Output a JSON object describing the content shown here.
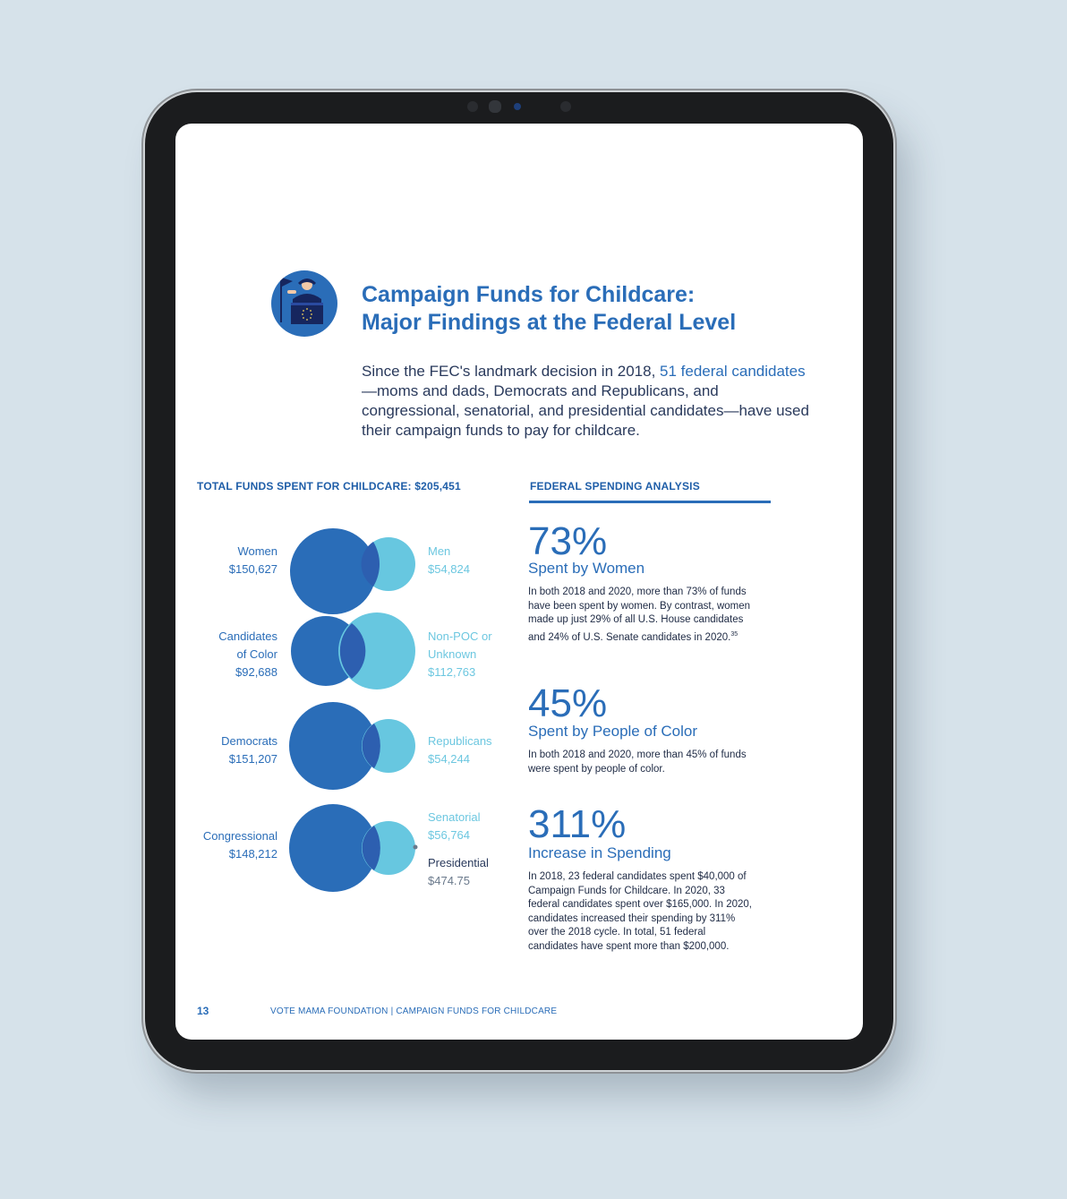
{
  "header": {
    "title_line1": "Campaign Funds for Childcare:",
    "title_line2": "Major Findings at the Federal Level",
    "intro_before": "Since the FEC's landmark decision in 2018, ",
    "intro_highlight": "51 federal candidates",
    "intro_after": "—moms and dads, Democrats and Republicans, and congressional, senatorial, and presidential candidates—have used their campaign funds to pay for childcare."
  },
  "left_section": {
    "heading": "TOTAL FUNDS SPENT FOR CHILDCARE: $205,451",
    "pairs": [
      {
        "left_lines": [
          "Women",
          "$150,627"
        ],
        "right_lines": [
          "Men",
          "$54,824"
        ]
      },
      {
        "left_lines": [
          "Candidates",
          "of Color",
          "$92,688"
        ],
        "right_lines": [
          "Non-POC or",
          "Unknown",
          "$112,763"
        ]
      },
      {
        "left_lines": [
          "Democrats",
          "$151,207"
        ],
        "right_lines": [
          "Republicans",
          "$54,244"
        ]
      },
      {
        "left_lines": [
          "Congressional",
          "$148,212"
        ],
        "right_lines": [
          "Senatorial",
          "$56,764"
        ],
        "extra_lines": [
          "Presidential",
          "$474.75"
        ]
      }
    ]
  },
  "chart_data": {
    "type": "venn",
    "pairs": [
      {
        "a": {
          "label": "Women",
          "value": 150627
        },
        "b": {
          "label": "Men",
          "value": 54824
        }
      },
      {
        "a": {
          "label": "Candidates of Color",
          "value": 92688
        },
        "b": {
          "label": "Non-POC or Unknown",
          "value": 112763
        }
      },
      {
        "a": {
          "label": "Democrats",
          "value": 151207
        },
        "b": {
          "label": "Republicans",
          "value": 54244
        }
      },
      {
        "a": {
          "label": "Congressional",
          "value": 148212
        },
        "b": {
          "label": "Senatorial",
          "value": 56764
        },
        "c": {
          "label": "Presidential",
          "value": 474.75
        }
      }
    ]
  },
  "right_section": {
    "heading": "FEDERAL SPENDING ANALYSIS",
    "stats": [
      {
        "value": "73%",
        "label": "Spent by Women",
        "text": "In both 2018 and 2020, more than 73% of funds have been spent by women. By contrast, women made up just 29% of all U.S. House candidates and 24% of U.S. Senate candidates in 2020.",
        "footnote": "35"
      },
      {
        "value": "45%",
        "label": "Spent by People of Color",
        "text": "In both 2018 and 2020, more than 45% of funds were spent by people of color.",
        "footnote": ""
      },
      {
        "value": "311%",
        "label": "Increase in Spending",
        "text": "In 2018, 23 federal candidates spent $40,000 of Campaign Funds for Childcare. In 2020, 33 federal candidates spent over $165,000. In 2020, candidates increased their spending by 311% over the 2018 cycle. In total, 51 federal candidates have spent more than $200,000.",
        "footnote": ""
      }
    ]
  },
  "footer": {
    "page_number": "13",
    "text": "VOTE MAMA FOUNDATION  | CAMPAIGN FUNDS FOR CHILDCARE"
  },
  "colors": {
    "dark_blue": "#2a6db8",
    "light_blue": "#67c7e0",
    "overlap": "#2d5fb0"
  }
}
